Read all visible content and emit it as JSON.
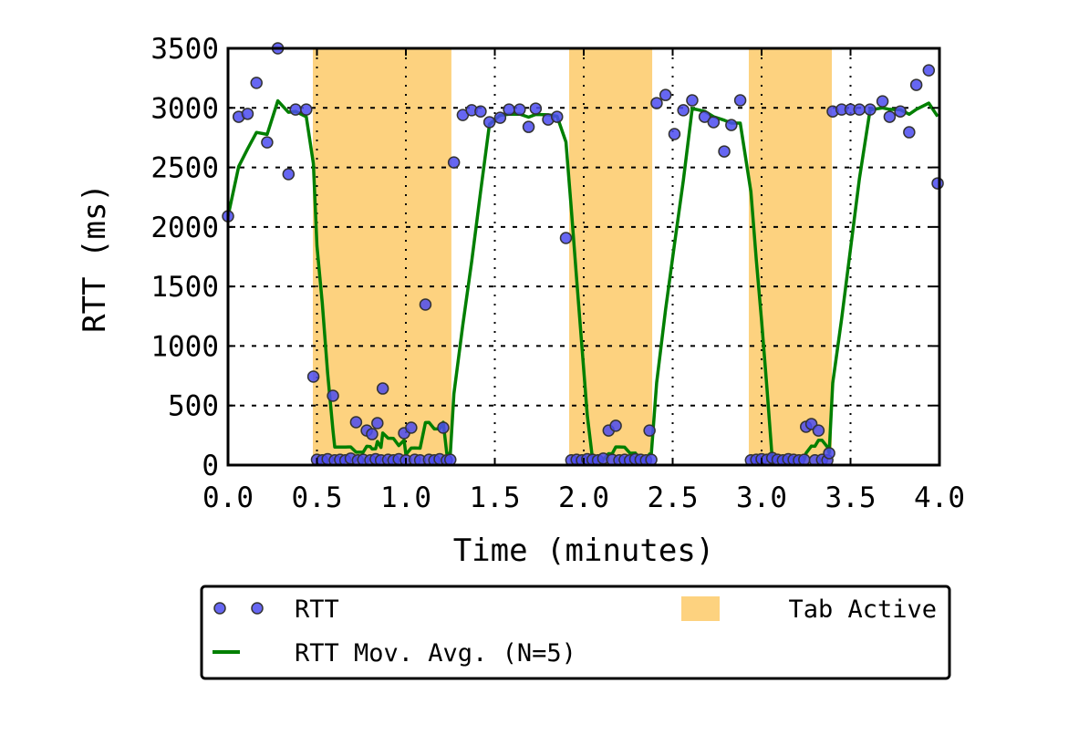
{
  "chart_data": {
    "type": "scatter",
    "title": "",
    "xlabel": "Time (minutes)",
    "ylabel": "RTT (ms)",
    "xlim": [
      0,
      4
    ],
    "ylim": [
      0,
      3500
    ],
    "grid": true,
    "xticks": [
      "0.0",
      "0.5",
      "1.0",
      "1.5",
      "2.0",
      "2.5",
      "3.0",
      "3.5",
      "4.0"
    ],
    "xtick_values": [
      0,
      0.5,
      1,
      1.5,
      2,
      2.5,
      3,
      3.5,
      4
    ],
    "yticks": [
      "0",
      "500",
      "1000",
      "1500",
      "2000",
      "2500",
      "3000",
      "3500"
    ],
    "ytick_values": [
      0,
      500,
      1000,
      1500,
      2000,
      2500,
      3000,
      3500
    ],
    "legend": {
      "placement": "below",
      "rtt_label": "RTT",
      "ma_label": "RTT Mov. Avg. (N=5)",
      "active_label": "Tab Active"
    },
    "colors": {
      "points": "#4b4bf0",
      "ma": "#007f00",
      "active": "#fdd27f"
    },
    "ma_window": 5,
    "tab_active_intervals": [
      [
        0.477,
        1.256
      ],
      [
        1.918,
        2.385
      ],
      [
        2.928,
        3.395
      ]
    ],
    "rtt_points": [
      [
        0.0,
        2090
      ],
      [
        0.06,
        2925
      ],
      [
        0.11,
        2950
      ],
      [
        0.16,
        3210
      ],
      [
        0.22,
        2710
      ],
      [
        0.28,
        3500
      ],
      [
        0.34,
        2443
      ],
      [
        0.38,
        2986
      ],
      [
        0.44,
        2986
      ],
      [
        0.48,
        743
      ],
      [
        0.5,
        45
      ],
      [
        0.53,
        40
      ],
      [
        0.56,
        50
      ],
      [
        0.59,
        582
      ],
      [
        0.6,
        40
      ],
      [
        0.63,
        45
      ],
      [
        0.66,
        40
      ],
      [
        0.69,
        55
      ],
      [
        0.72,
        360
      ],
      [
        0.73,
        40
      ],
      [
        0.76,
        45
      ],
      [
        0.78,
        290
      ],
      [
        0.8,
        40
      ],
      [
        0.81,
        260
      ],
      [
        0.83,
        50
      ],
      [
        0.84,
        352
      ],
      [
        0.86,
        40
      ],
      [
        0.87,
        643
      ],
      [
        0.9,
        45
      ],
      [
        0.93,
        40
      ],
      [
        0.96,
        50
      ],
      [
        0.99,
        268
      ],
      [
        1.0,
        40
      ],
      [
        1.03,
        314
      ],
      [
        1.05,
        45
      ],
      [
        1.08,
        40
      ],
      [
        1.11,
        1348
      ],
      [
        1.13,
        45
      ],
      [
        1.16,
        40
      ],
      [
        1.19,
        50
      ],
      [
        1.21,
        314
      ],
      [
        1.23,
        40
      ],
      [
        1.25,
        45
      ],
      [
        1.27,
        2542
      ],
      [
        1.32,
        2940
      ],
      [
        1.37,
        2980
      ],
      [
        1.42,
        2970
      ],
      [
        1.47,
        2880
      ],
      [
        1.53,
        2917
      ],
      [
        1.58,
        2986
      ],
      [
        1.64,
        2986
      ],
      [
        1.69,
        2840
      ],
      [
        1.73,
        2994
      ],
      [
        1.8,
        2902
      ],
      [
        1.85,
        2925
      ],
      [
        1.9,
        1907
      ],
      [
        1.93,
        40
      ],
      [
        1.96,
        45
      ],
      [
        1.99,
        40
      ],
      [
        2.02,
        50
      ],
      [
        2.05,
        45
      ],
      [
        2.08,
        40
      ],
      [
        2.11,
        55
      ],
      [
        2.14,
        290
      ],
      [
        2.16,
        45
      ],
      [
        2.18,
        330
      ],
      [
        2.2,
        40
      ],
      [
        2.23,
        45
      ],
      [
        2.26,
        40
      ],
      [
        2.29,
        50
      ],
      [
        2.32,
        45
      ],
      [
        2.35,
        40
      ],
      [
        2.37,
        290
      ],
      [
        2.38,
        45
      ],
      [
        2.41,
        3040
      ],
      [
        2.46,
        3108
      ],
      [
        2.51,
        2780
      ],
      [
        2.56,
        2980
      ],
      [
        2.61,
        3063
      ],
      [
        2.68,
        2925
      ],
      [
        2.73,
        2880
      ],
      [
        2.79,
        2634
      ],
      [
        2.83,
        2856
      ],
      [
        2.88,
        3063
      ],
      [
        2.94,
        40
      ],
      [
        2.97,
        45
      ],
      [
        3.0,
        50
      ],
      [
        3.03,
        45
      ],
      [
        3.06,
        60
      ],
      [
        3.09,
        45
      ],
      [
        3.12,
        40
      ],
      [
        3.15,
        50
      ],
      [
        3.18,
        45
      ],
      [
        3.21,
        40
      ],
      [
        3.24,
        45
      ],
      [
        3.25,
        322
      ],
      [
        3.28,
        345
      ],
      [
        3.3,
        40
      ],
      [
        3.32,
        290
      ],
      [
        3.34,
        45
      ],
      [
        3.37,
        40
      ],
      [
        3.38,
        100
      ],
      [
        3.4,
        2970
      ],
      [
        3.45,
        2986
      ],
      [
        3.5,
        2986
      ],
      [
        3.55,
        2986
      ],
      [
        3.61,
        2986
      ],
      [
        3.68,
        3055
      ],
      [
        3.72,
        2925
      ],
      [
        3.78,
        2970
      ],
      [
        3.83,
        2795
      ],
      [
        3.87,
        3193
      ],
      [
        3.94,
        3315
      ],
      [
        3.99,
        2366
      ]
    ]
  }
}
